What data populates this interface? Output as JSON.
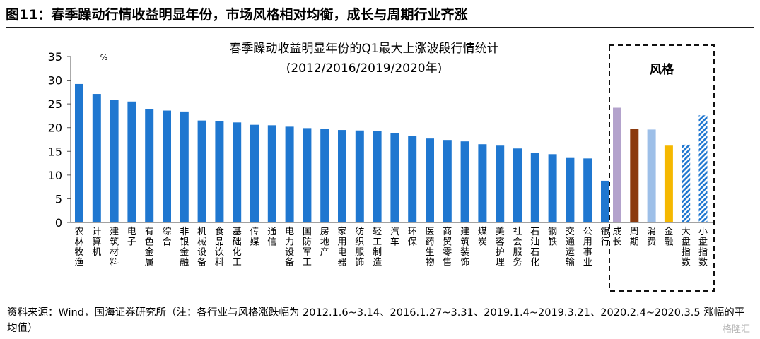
{
  "figure_title": "图11：春季躁动行情收益明显年份，市场风格相对均衡，成长与周期行业齐涨",
  "source_note": "资料来源：Wind，国海证券研究所（注：各行业与风格涨跌幅为 2012.1.6~3.14、2016.1.27~3.31、2019.1.4~2019.3.21、2020.2.4~2020.3.5 涨幅的平均值）",
  "watermark": "格隆汇",
  "colors": {
    "industry": "#1f77d0",
    "growth": "#b3a2cc",
    "cyclical": "#8b3a0e",
    "consumer": "#9dbfe8",
    "financial": "#f5b800",
    "hatched": "#1f77d0"
  },
  "chart_data": {
    "type": "bar",
    "title": "春季躁动收益明显年份的Q1最大上涨波段行情统计",
    "subtitle": "(2012/2016/2019/2020年)",
    "ylabel": "%",
    "xlabel": "",
    "ylim": [
      0,
      35
    ],
    "yticks": [
      0,
      5,
      10,
      15,
      20,
      25,
      30,
      35
    ],
    "grid": false,
    "categories": [
      "农林牧渔",
      "计算机",
      "建筑材料",
      "电子",
      "有色金属",
      "综合",
      "非银金融",
      "机械设备",
      "食品饮料",
      "基础化工",
      "传媒",
      "通信",
      "电力设备",
      "国防军工",
      "房地产",
      "家用电器",
      "纺织服饰",
      "轻工制造",
      "汽车",
      "环保",
      "医药生物",
      "商贸零售",
      "建筑装饰",
      "煤炭",
      "美容护理",
      "社会服务",
      "石油石化",
      "钢铁",
      "交通运输",
      "公用事业",
      "银行"
    ],
    "values": [
      29.2,
      27.1,
      25.9,
      25.5,
      23.9,
      23.6,
      23.4,
      21.5,
      21.3,
      21.1,
      20.6,
      20.5,
      20.2,
      19.9,
      19.8,
      19.5,
      19.4,
      19.3,
      18.8,
      18.3,
      17.7,
      17.4,
      17.1,
      16.5,
      16.2,
      15.6,
      14.7,
      14.4,
      13.6,
      13.5,
      8.8
    ],
    "style_group": {
      "label": "风格",
      "categories": [
        "成长",
        "周期",
        "消费",
        "金融",
        "大盘指数",
        "小盘指数"
      ],
      "values": [
        24.2,
        19.7,
        19.6,
        16.2,
        16.4,
        22.6
      ],
      "fills": [
        "growth",
        "cyclical",
        "consumer",
        "financial",
        "hatched",
        "hatched"
      ]
    }
  }
}
